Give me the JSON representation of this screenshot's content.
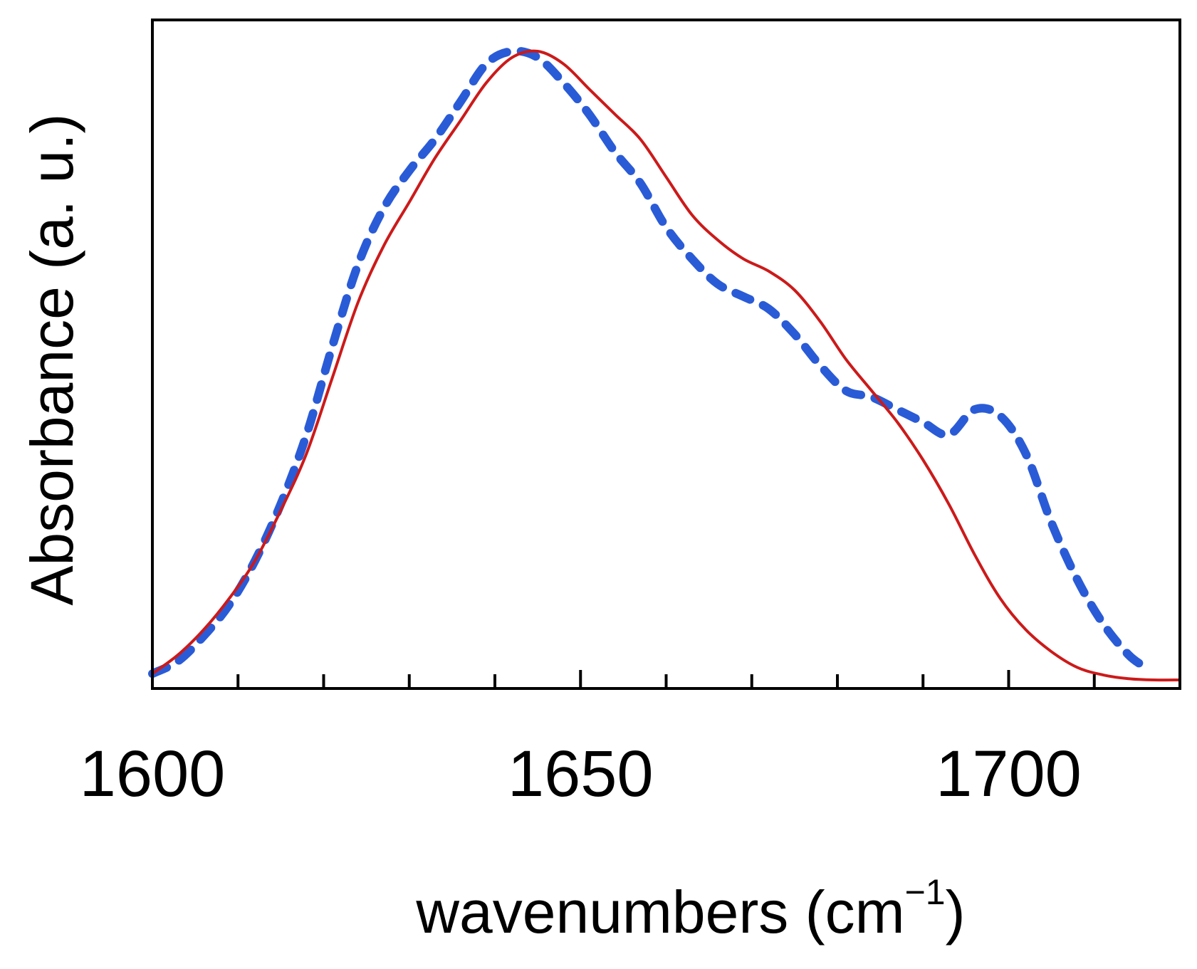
{
  "chart_data": {
    "type": "line",
    "title": "",
    "xlabel": "wavenumbers (cm",
    "xlabel_sup": "−1",
    "xlabel_close": ")",
    "ylabel": "Absorbance (a. u.)",
    "xlim": [
      1600,
      1720
    ],
    "ylim": [
      0,
      1
    ],
    "x_ticks_labeled": [
      1600,
      1650,
      1700
    ],
    "x_tick_step": 10,
    "y_ticks": false,
    "grid": false,
    "legend": "none",
    "series": [
      {
        "name": "solid",
        "style": "solid",
        "color": "#cc1a1a",
        "points": [
          [
            1600,
            0.01
          ],
          [
            1603,
            0.04
          ],
          [
            1606,
            0.08
          ],
          [
            1609,
            0.13
          ],
          [
            1612,
            0.19
          ],
          [
            1615,
            0.27
          ],
          [
            1618,
            0.36
          ],
          [
            1621,
            0.48
          ],
          [
            1624,
            0.6
          ],
          [
            1627,
            0.69
          ],
          [
            1630,
            0.76
          ],
          [
            1633,
            0.83
          ],
          [
            1636,
            0.89
          ],
          [
            1639,
            0.95
          ],
          [
            1642,
            0.99
          ],
          [
            1645,
            1.0
          ],
          [
            1648,
            0.98
          ],
          [
            1651,
            0.94
          ],
          [
            1654,
            0.9
          ],
          [
            1657,
            0.86
          ],
          [
            1660,
            0.8
          ],
          [
            1663,
            0.74
          ],
          [
            1666,
            0.7
          ],
          [
            1669,
            0.67
          ],
          [
            1672,
            0.65
          ],
          [
            1675,
            0.62
          ],
          [
            1678,
            0.57
          ],
          [
            1681,
            0.51
          ],
          [
            1684,
            0.46
          ],
          [
            1687,
            0.41
          ],
          [
            1690,
            0.35
          ],
          [
            1693,
            0.28
          ],
          [
            1696,
            0.2
          ],
          [
            1699,
            0.13
          ],
          [
            1702,
            0.08
          ],
          [
            1705,
            0.045
          ],
          [
            1708,
            0.02
          ],
          [
            1711,
            0.008
          ],
          [
            1714,
            0.002
          ],
          [
            1717,
            0.0
          ],
          [
            1720,
            0.0
          ]
        ]
      },
      {
        "name": "dashed",
        "style": "dashed",
        "color": "#2a5bd7",
        "points": [
          [
            1600,
            0.01
          ],
          [
            1603,
            0.03
          ],
          [
            1606,
            0.07
          ],
          [
            1609,
            0.12
          ],
          [
            1612,
            0.19
          ],
          [
            1615,
            0.28
          ],
          [
            1618,
            0.39
          ],
          [
            1621,
            0.53
          ],
          [
            1624,
            0.66
          ],
          [
            1627,
            0.75
          ],
          [
            1630,
            0.81
          ],
          [
            1633,
            0.86
          ],
          [
            1636,
            0.92
          ],
          [
            1639,
            0.98
          ],
          [
            1642,
            1.0
          ],
          [
            1645,
            0.99
          ],
          [
            1648,
            0.95
          ],
          [
            1651,
            0.9
          ],
          [
            1654,
            0.84
          ],
          [
            1657,
            0.79
          ],
          [
            1660,
            0.72
          ],
          [
            1663,
            0.67
          ],
          [
            1666,
            0.63
          ],
          [
            1669,
            0.61
          ],
          [
            1672,
            0.59
          ],
          [
            1675,
            0.55
          ],
          [
            1678,
            0.5
          ],
          [
            1681,
            0.46
          ],
          [
            1684,
            0.45
          ],
          [
            1687,
            0.43
          ],
          [
            1690,
            0.41
          ],
          [
            1693,
            0.39
          ],
          [
            1696,
            0.43
          ],
          [
            1699,
            0.42
          ],
          [
            1702,
            0.36
          ],
          [
            1705,
            0.25
          ],
          [
            1708,
            0.16
          ],
          [
            1711,
            0.09
          ],
          [
            1714,
            0.04
          ],
          [
            1716,
            0.02
          ]
        ]
      }
    ]
  }
}
